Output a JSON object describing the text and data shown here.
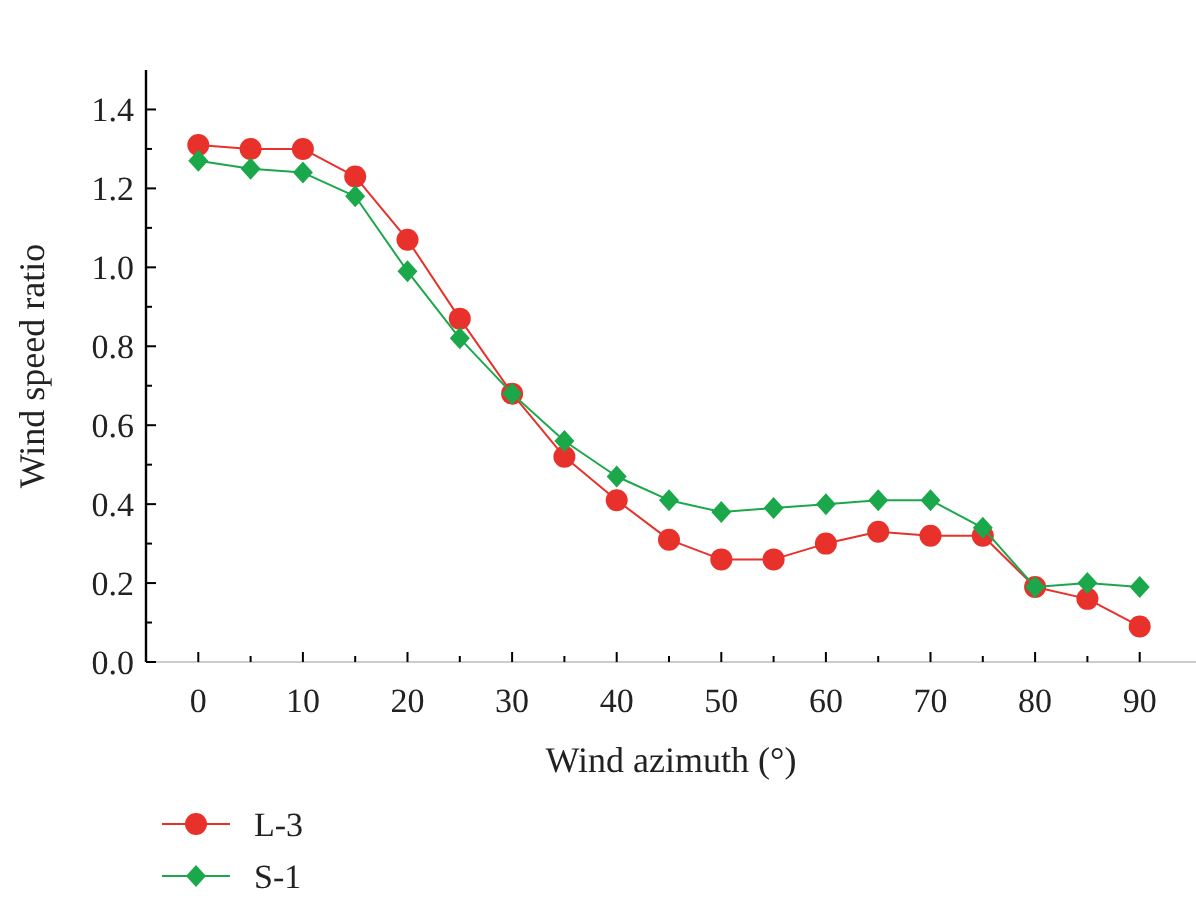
{
  "chart_data": {
    "type": "line",
    "xlabel": "Wind azimuth (°)",
    "ylabel": "Wind speed ratio",
    "x": [
      0,
      5,
      10,
      15,
      20,
      25,
      30,
      35,
      40,
      45,
      50,
      55,
      60,
      65,
      70,
      75,
      80,
      85,
      90
    ],
    "series": [
      {
        "name": "L-3",
        "color": "#e8312a",
        "marker": "circle",
        "values": [
          1.31,
          1.3,
          1.3,
          1.23,
          1.07,
          0.87,
          0.68,
          0.52,
          0.41,
          0.31,
          0.26,
          0.26,
          0.3,
          0.33,
          0.32,
          0.32,
          0.19,
          0.16,
          0.09
        ]
      },
      {
        "name": "S-1",
        "color": "#1aa84a",
        "marker": "diamond",
        "values": [
          1.27,
          1.25,
          1.24,
          1.18,
          0.99,
          0.82,
          0.68,
          0.56,
          0.47,
          0.41,
          0.38,
          0.39,
          0.4,
          0.41,
          0.41,
          0.34,
          0.19,
          0.2,
          0.19
        ]
      }
    ],
    "xlim": [
      -5,
      95
    ],
    "xticks": [
      0,
      {
        "value": 5,
        "label": null
      },
      10,
      {
        "value": 15,
        "label": null
      },
      20,
      {
        "value": 25,
        "label": null
      },
      30,
      {
        "value": 35,
        "label": null
      },
      40,
      {
        "value": 45,
        "label": null
      },
      50,
      {
        "value": 55,
        "label": null
      },
      60,
      {
        "value": 65,
        "label": null
      },
      70,
      {
        "value": 75,
        "label": null
      },
      80,
      {
        "value": 85,
        "label": null
      },
      90
    ],
    "ylim": [
      0,
      1.5
    ],
    "yticks": [
      {
        "value": 0,
        "label": "0.0"
      },
      {
        "value": 0.1,
        "label": null
      },
      {
        "value": 0.2,
        "label": "0.2"
      },
      {
        "value": 0.3,
        "label": null
      },
      {
        "value": 0.4,
        "label": "0.4"
      },
      {
        "value": 0.5,
        "label": null
      },
      {
        "value": 0.6,
        "label": "0.6"
      },
      {
        "value": 0.7,
        "label": null
      },
      {
        "value": 0.8,
        "label": "0.8"
      },
      {
        "value": 0.9,
        "label": null
      },
      {
        "value": 1.0,
        "label": "1.0"
      },
      {
        "value": 1.1,
        "label": null
      },
      {
        "value": 1.2,
        "label": "1.2"
      },
      {
        "value": 1.3,
        "label": null
      },
      {
        "value": 1.4,
        "label": "1.4"
      }
    ],
    "grid": false,
    "legend": "bottom left",
    "line_style": "solid"
  }
}
